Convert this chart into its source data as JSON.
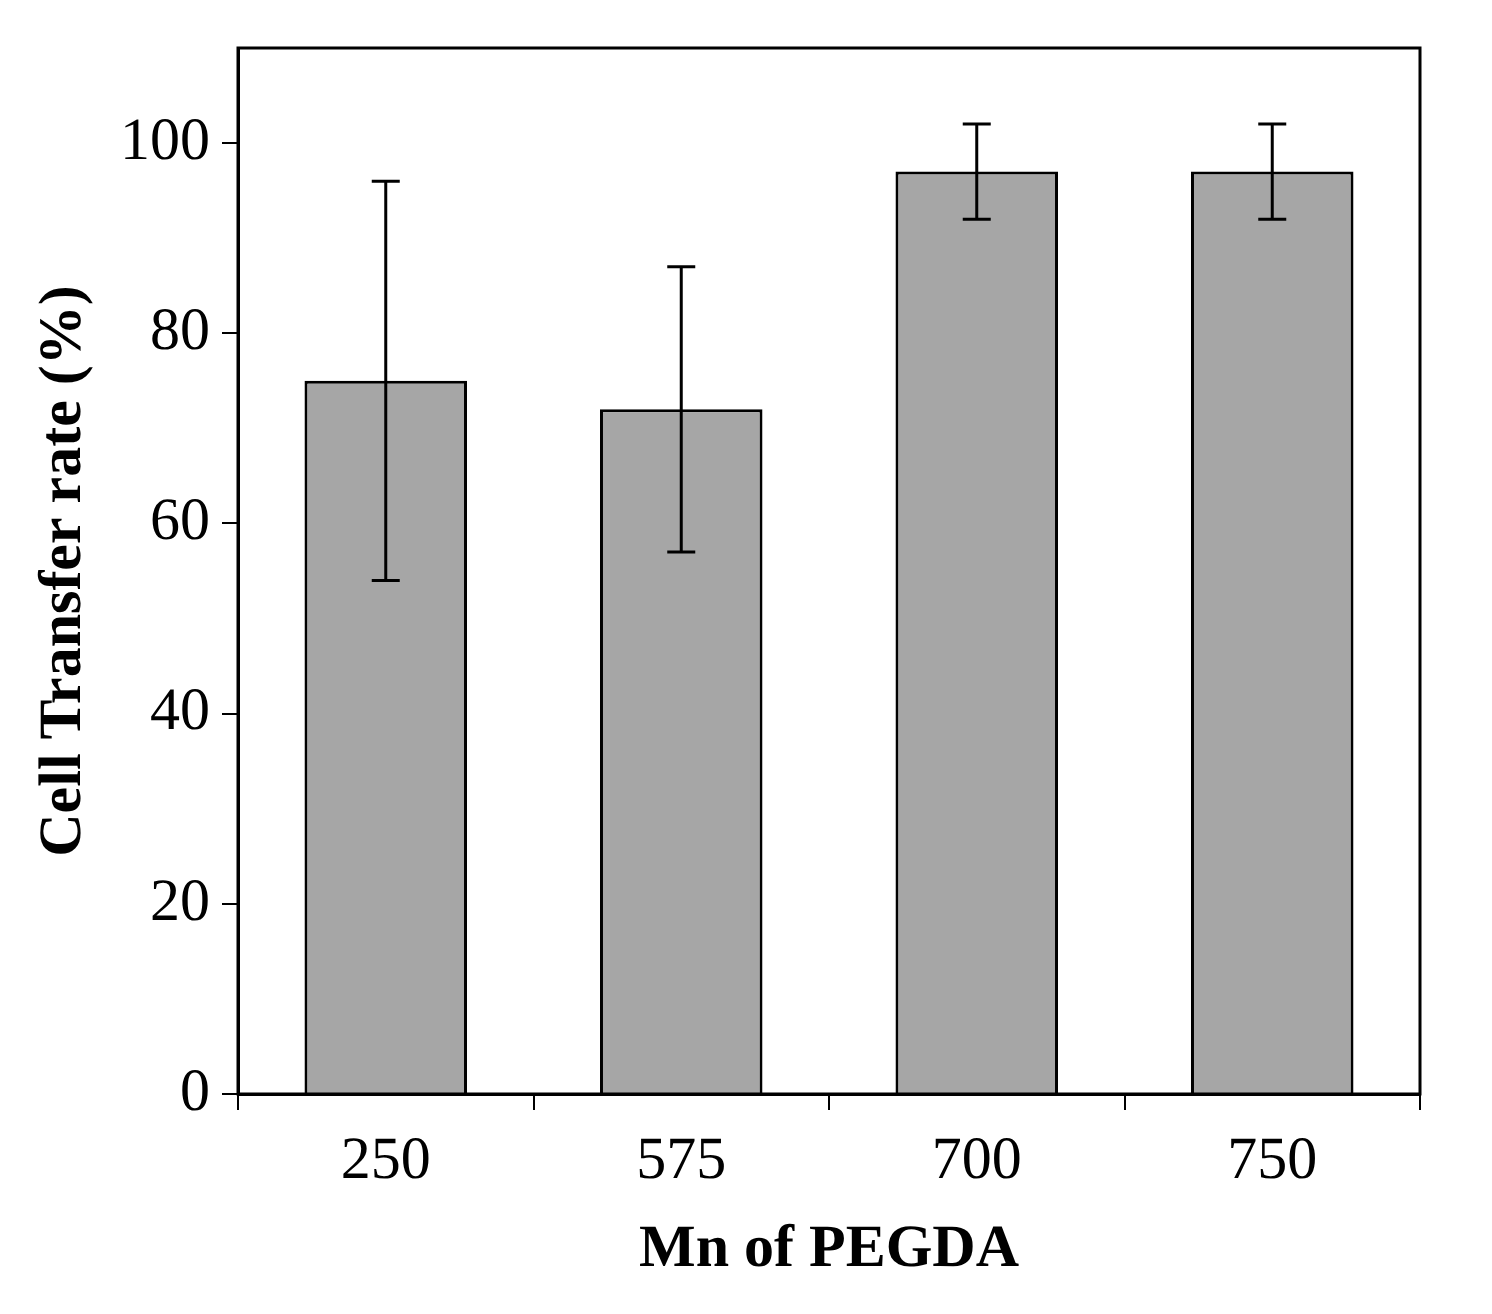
{
  "chart_data": {
    "type": "bar",
    "xlabel": "Mn of PEGDA",
    "ylabel": "Cell Transfer rate (%)",
    "categories": [
      "250",
      "575",
      "700",
      "750"
    ],
    "values": [
      75,
      72,
      97,
      97
    ],
    "errors": [
      21,
      15,
      5,
      5
    ],
    "color": "#a6a6a6",
    "ylim": [
      0,
      110
    ],
    "yticks": [
      0,
      20,
      40,
      60,
      80,
      100
    ],
    "grid": false,
    "legend": false
  }
}
